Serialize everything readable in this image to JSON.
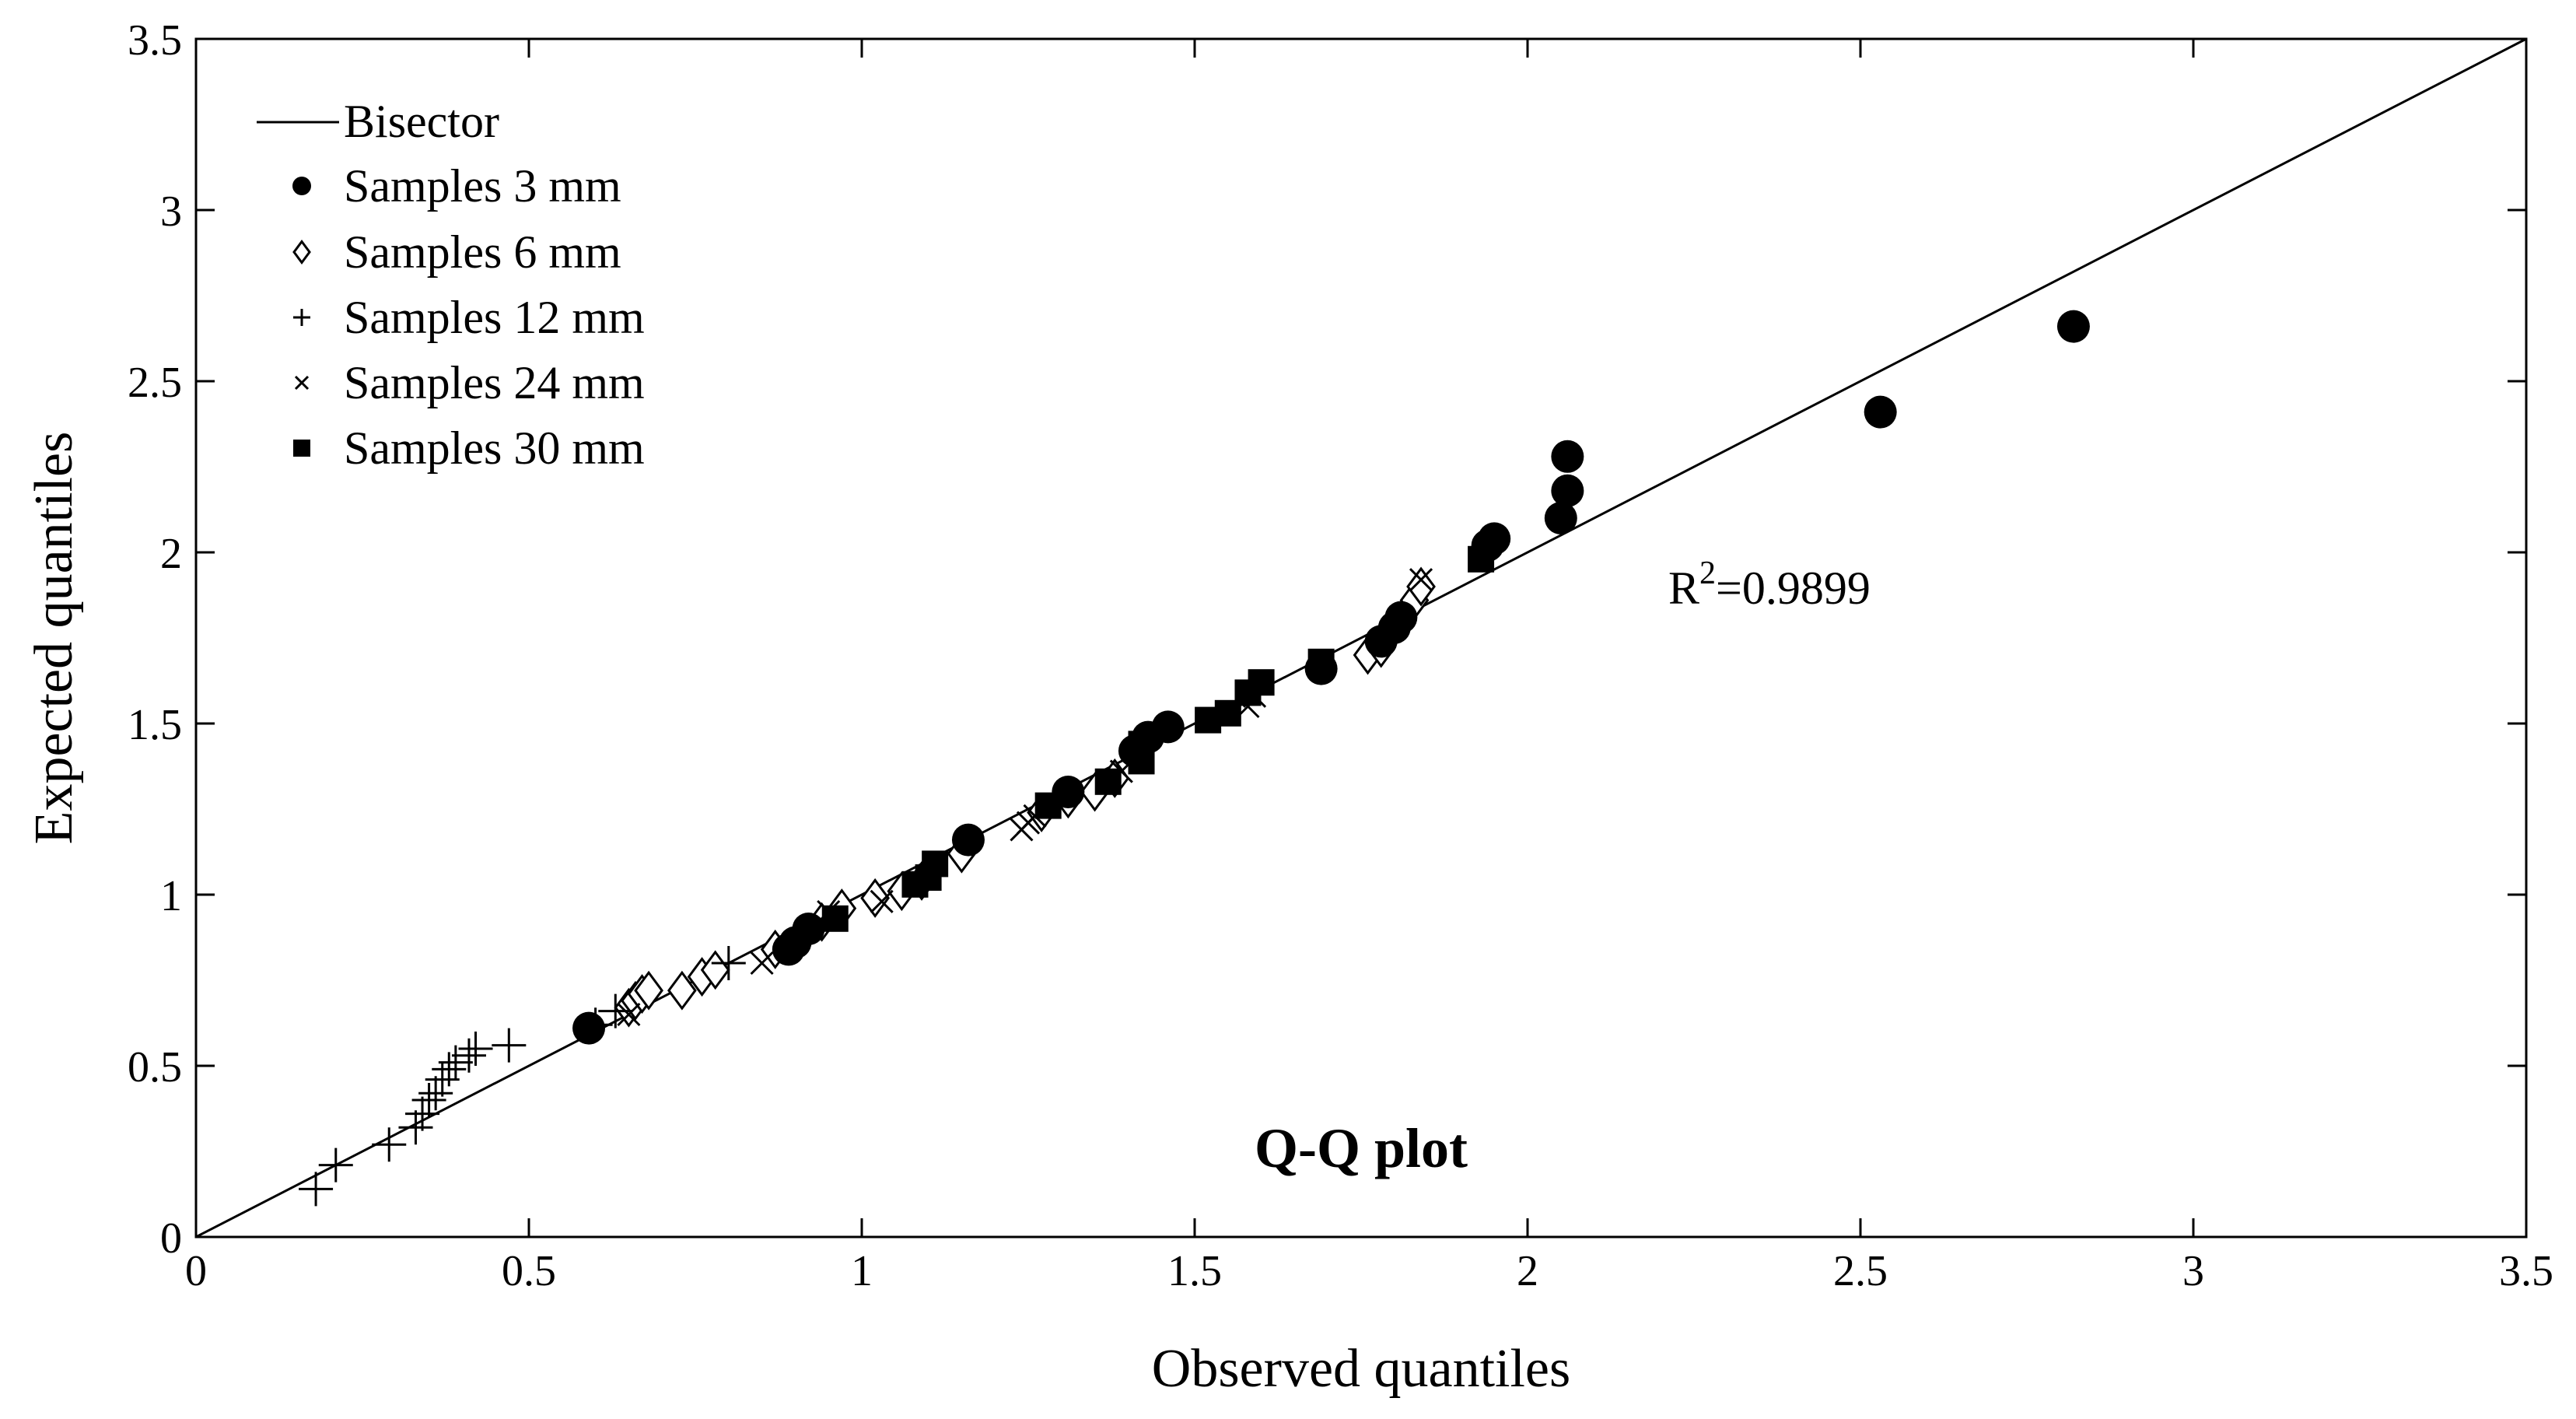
{
  "chart_data": {
    "type": "scatter",
    "title": "Q-Q plot",
    "xlabel": "Observed quantiles",
    "ylabel": "Expected quantiles",
    "xlim": [
      0,
      3.5
    ],
    "ylim": [
      0,
      3.5
    ],
    "xticks": [
      0,
      0.5,
      1,
      1.5,
      2,
      2.5,
      3,
      3.5
    ],
    "yticks": [
      0,
      0.5,
      1,
      1.5,
      2,
      2.5,
      3,
      3.5
    ],
    "xtick_labels": [
      "0",
      "0.5",
      "1",
      "1.5",
      "2",
      "2.5",
      "3",
      "3.5"
    ],
    "ytick_labels": [
      "0",
      "0.5",
      "1",
      "1.5",
      "2",
      "2.5",
      "3",
      "3.5"
    ],
    "grid": false,
    "legend_position": "top-left",
    "reference_line": {
      "name": "Bisector",
      "from": [
        0,
        0
      ],
      "to": [
        3.5,
        3.5
      ]
    },
    "annotation": {
      "prefix": "R",
      "sup": "2",
      "suffix": "=0.9899",
      "x": 2.2,
      "y": 1.85
    },
    "series": [
      {
        "name": "Samples 3 mm",
        "marker": "filled-circle",
        "points": [
          [
            0.59,
            0.61
          ],
          [
            0.89,
            0.84
          ],
          [
            0.9,
            0.86
          ],
          [
            0.92,
            0.9
          ],
          [
            1.16,
            1.16
          ],
          [
            1.31,
            1.3
          ],
          [
            1.41,
            1.42
          ],
          [
            1.43,
            1.46
          ],
          [
            1.46,
            1.49
          ],
          [
            1.69,
            1.66
          ],
          [
            1.78,
            1.74
          ],
          [
            1.8,
            1.78
          ],
          [
            1.81,
            1.81
          ],
          [
            1.94,
            2.02
          ],
          [
            1.95,
            2.04
          ],
          [
            2.05,
            2.1
          ],
          [
            2.06,
            2.18
          ],
          [
            2.06,
            2.28
          ],
          [
            2.53,
            2.41
          ],
          [
            2.82,
            2.66
          ]
        ]
      },
      {
        "name": "Samples 6 mm",
        "marker": "open-diamond",
        "points": [
          [
            0.65,
            0.67
          ],
          [
            0.66,
            0.69
          ],
          [
            0.67,
            0.71
          ],
          [
            0.68,
            0.72
          ],
          [
            0.73,
            0.72
          ],
          [
            0.76,
            0.76
          ],
          [
            0.78,
            0.78
          ],
          [
            0.87,
            0.84
          ],
          [
            0.91,
            0.88
          ],
          [
            0.94,
            0.92
          ],
          [
            0.97,
            0.96
          ],
          [
            1.02,
            0.99
          ],
          [
            1.06,
            1.01
          ],
          [
            1.09,
            1.04
          ],
          [
            1.15,
            1.12
          ],
          [
            1.27,
            1.24
          ],
          [
            1.31,
            1.28
          ],
          [
            1.35,
            1.3
          ],
          [
            1.38,
            1.34
          ],
          [
            1.76,
            1.7
          ],
          [
            1.78,
            1.72
          ],
          [
            1.83,
            1.86
          ],
          [
            1.84,
            1.9
          ]
        ]
      },
      {
        "name": "Samples 12 mm",
        "marker": "plus",
        "points": [
          [
            0.18,
            0.14
          ],
          [
            0.21,
            0.21
          ],
          [
            0.29,
            0.27
          ],
          [
            0.33,
            0.32
          ],
          [
            0.34,
            0.36
          ],
          [
            0.35,
            0.4
          ],
          [
            0.36,
            0.42
          ],
          [
            0.37,
            0.46
          ],
          [
            0.38,
            0.49
          ],
          [
            0.39,
            0.51
          ],
          [
            0.41,
            0.53
          ],
          [
            0.42,
            0.55
          ],
          [
            0.47,
            0.56
          ],
          [
            0.6,
            0.62
          ],
          [
            0.63,
            0.66
          ],
          [
            0.8,
            0.8
          ]
        ]
      },
      {
        "name": "Samples 24 mm",
        "marker": "x-cross",
        "points": [
          [
            0.65,
            0.65
          ],
          [
            0.85,
            0.8
          ],
          [
            0.95,
            0.95
          ],
          [
            1.03,
            0.98
          ],
          [
            1.24,
            1.19
          ],
          [
            1.25,
            1.21
          ],
          [
            1.26,
            1.23
          ],
          [
            1.28,
            1.26
          ],
          [
            1.39,
            1.36
          ],
          [
            1.58,
            1.55
          ],
          [
            1.59,
            1.58
          ],
          [
            1.84,
            1.92
          ]
        ]
      },
      {
        "name": "Samples 30 mm",
        "marker": "filled-square",
        "points": [
          [
            0.96,
            0.93
          ],
          [
            1.08,
            1.03
          ],
          [
            1.1,
            1.05
          ],
          [
            1.11,
            1.09
          ],
          [
            1.28,
            1.26
          ],
          [
            1.37,
            1.33
          ],
          [
            1.42,
            1.39
          ],
          [
            1.42,
            1.44
          ],
          [
            1.52,
            1.51
          ],
          [
            1.55,
            1.53
          ],
          [
            1.58,
            1.59
          ],
          [
            1.6,
            1.62
          ],
          [
            1.69,
            1.68
          ],
          [
            1.93,
            1.98
          ]
        ]
      }
    ]
  }
}
